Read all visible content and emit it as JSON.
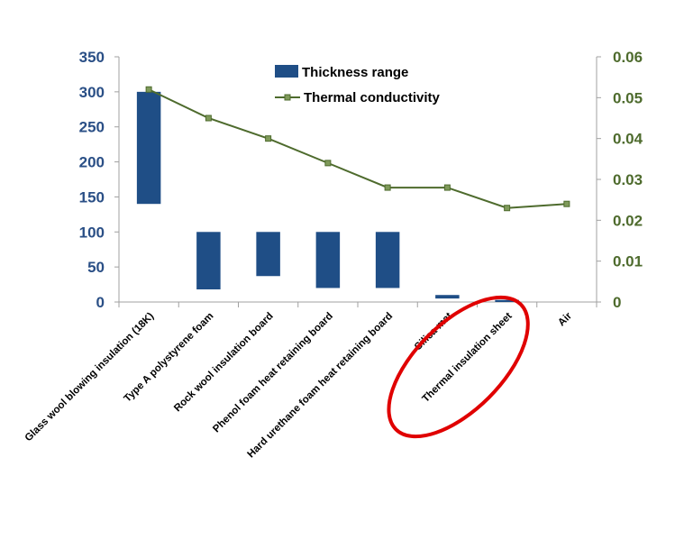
{
  "chart_data": {
    "type": "bar",
    "title": "",
    "categories": [
      "Glass wool  blowing insulation (18K)",
      "Type A  polystyrene foam",
      "Rock wool insulation board",
      "Phenol foam heat retaining board",
      "Hard urethane foam heat retaining board",
      "Silica mat",
      "Thermal insulation sheet",
      "Air"
    ],
    "series": [
      {
        "name": "Thickness range",
        "kind": "floating-bar",
        "axis": "left",
        "low": [
          140,
          18,
          37,
          20,
          20,
          5,
          0,
          null
        ],
        "high": [
          300,
          100,
          100,
          100,
          100,
          10,
          3,
          null
        ]
      },
      {
        "name": "Thermal conductivity",
        "kind": "line",
        "axis": "right",
        "values": [
          0.052,
          0.045,
          0.04,
          0.034,
          0.028,
          0.028,
          0.023,
          0.024
        ]
      }
    ],
    "left_axis": {
      "min": 0,
      "max": 350,
      "ticks": [
        "0",
        "50",
        "100",
        "150",
        "200",
        "250",
        "300",
        "350"
      ]
    },
    "right_axis": {
      "min": 0,
      "max": 0.06,
      "ticks": [
        "0",
        "0.01",
        "0.02",
        "0.03",
        "0.04",
        "0.05",
        "0.06"
      ]
    },
    "annotation": {
      "type": "ellipse",
      "target": "Thermal insulation sheet",
      "color": "#e00000"
    },
    "colors": {
      "bar": "#1f4e86",
      "line": "#4e6b2d",
      "marker": "#7f9a5a",
      "left_axis_text": "#2a4f86",
      "right_axis_text": "#4e6b2d",
      "axis_line": "#a0a0a0"
    }
  }
}
